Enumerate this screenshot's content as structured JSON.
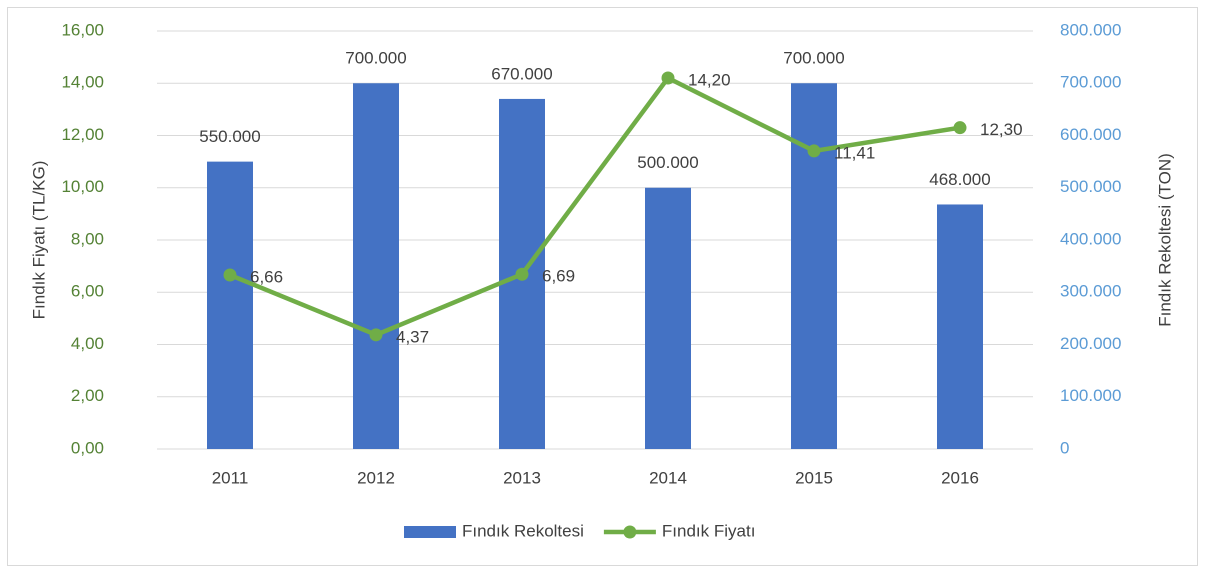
{
  "chart_data": {
    "type": "combo",
    "y_label": "Fındık Fiyatı (TL/KG)",
    "y2_label": "Fındık Rekoltesi (TON)",
    "categories": [
      "2011",
      "2012",
      "2013",
      "2014",
      "2015",
      "2016"
    ],
    "series": [
      {
        "name": "Fındık Rekoltesi",
        "type": "bar",
        "axis": "y2",
        "color": "#4472c4",
        "values": [
          550000,
          700000,
          670000,
          500000,
          700000,
          468000
        ],
        "value_labels": [
          "550.000",
          "700.000",
          "670.000",
          "500.000",
          "700.000",
          "468.000"
        ]
      },
      {
        "name": "Fındık Fiyatı",
        "type": "line",
        "color": "#70ad47",
        "values": [
          6.66,
          4.37,
          6.69,
          14.2,
          11.41,
          12.3
        ],
        "value_labels": [
          "6,66",
          "4,37",
          "6,69",
          "14,20",
          "11,41",
          "12,30"
        ]
      }
    ],
    "ylim": [
      0,
      16
    ],
    "yticks": [
      {
        "value": 0,
        "label": "0,00"
      },
      {
        "value": 2,
        "label": "2,00"
      },
      {
        "value": 4,
        "label": "4,00"
      },
      {
        "value": 6,
        "label": "6,00"
      },
      {
        "value": 8,
        "label": "8,00"
      },
      {
        "value": 10,
        "label": "10,00"
      },
      {
        "value": 12,
        "label": "12,00"
      },
      {
        "value": 14,
        "label": "14,00"
      },
      {
        "value": 16,
        "label": "16,00"
      }
    ],
    "y2lim": [
      0,
      800000
    ],
    "y2ticks": [
      0,
      {
        "value": 100000,
        "label": "100.000"
      },
      {
        "value": 200000,
        "label": "200.000"
      },
      {
        "value": 300000,
        "label": "300.000"
      },
      {
        "value": 400000,
        "label": "400.000"
      },
      {
        "value": 500000,
        "label": "500.000"
      },
      {
        "value": 600000,
        "label": "600.000"
      },
      {
        "value": 700000,
        "label": "700.000"
      },
      {
        "value": 800000,
        "label": "800.000"
      }
    ],
    "grid": true,
    "legend": "bottom"
  }
}
